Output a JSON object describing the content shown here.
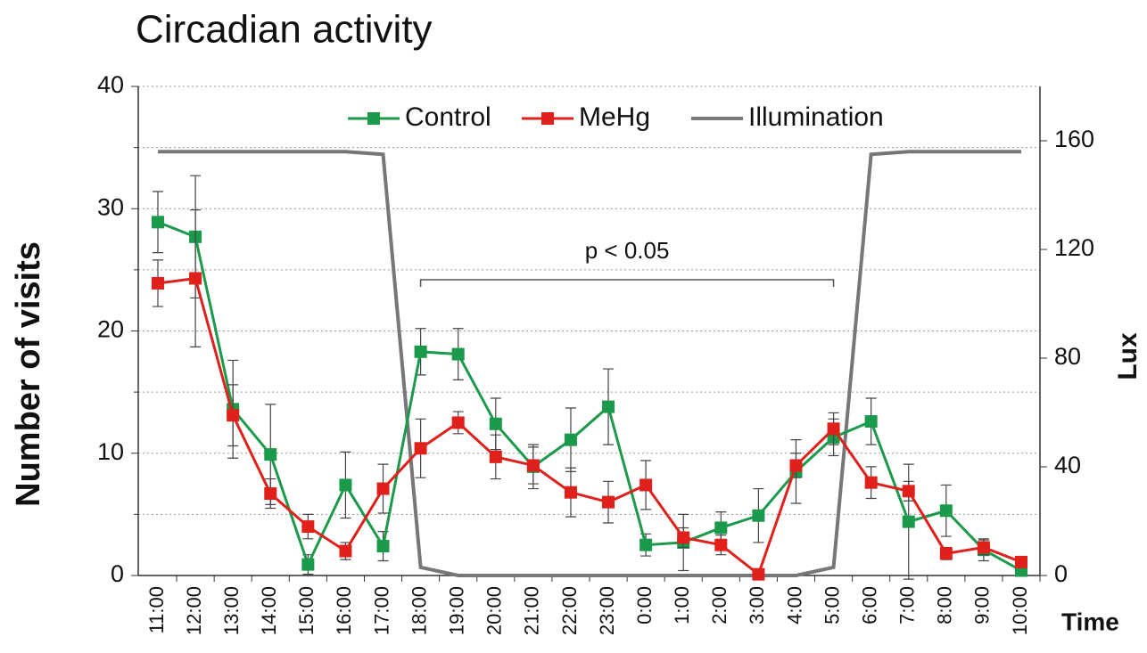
{
  "chart_data": {
    "type": "line",
    "title": "Circadian activity",
    "x_label": "Time",
    "y_label": "Number of visits",
    "y2_label": "Lux",
    "annotation": "p < 0.05",
    "annotation_span": [
      "18:00",
      "5:00"
    ],
    "categories": [
      "11:00",
      "12:00",
      "13:00",
      "14:00",
      "15:00",
      "16:00",
      "17:00",
      "18:00",
      "19:00",
      "20:00",
      "21:00",
      "22:00",
      "23:00",
      "0:00",
      "1:00",
      "2:00",
      "3:00",
      "4:00",
      "5:00",
      "6:00",
      "7:00",
      "8:00",
      "9:00",
      "10:00"
    ],
    "series": [
      {
        "name": "Control",
        "color": "#1a9a4a",
        "marker": "square",
        "values": [
          28.9,
          27.7,
          13.6,
          9.9,
          0.9,
          7.4,
          2.4,
          18.3,
          18.1,
          12.4,
          8.9,
          11.1,
          13.8,
          2.5,
          2.7,
          3.9,
          4.9,
          8.5,
          11.3,
          12.6,
          4.4,
          5.3,
          2.1,
          0.4
        ],
        "errors": [
          2.5,
          5,
          4,
          4.1,
          0.8,
          2.7,
          1.2,
          1.9,
          2.1,
          2.1,
          1.8,
          2.6,
          3.1,
          0.9,
          2.3,
          1.3,
          2.2,
          2.6,
          1.5,
          1.9,
          4.7,
          2.1,
          0.9,
          0.4
        ]
      },
      {
        "name": "MeHg",
        "color": "#e0201b",
        "marker": "square",
        "values": [
          23.9,
          24.3,
          13.1,
          6.7,
          4.0,
          2.0,
          7.1,
          10.4,
          12.5,
          9.7,
          9.0,
          6.8,
          6.0,
          7.4,
          3.1,
          2.5,
          0.1,
          9.0,
          12.0,
          7.6,
          6.9,
          1.8,
          2.3,
          1.1
        ],
        "errors": [
          1.9,
          5.6,
          2.5,
          1.2,
          1.0,
          0.7,
          2.0,
          2.4,
          0.9,
          1.8,
          1.5,
          2.0,
          1.7,
          2.0,
          0.8,
          0.8,
          0.1,
          1.0,
          1.3,
          1.3,
          0.8,
          0.5,
          0.6,
          0.3
        ]
      },
      {
        "name": "Illumination",
        "color": "#777777",
        "axis": "y2",
        "values": [
          156,
          156,
          156,
          156,
          156,
          156,
          155,
          3,
          0,
          0,
          0,
          0,
          0,
          0,
          0,
          0,
          0,
          0,
          3,
          155,
          156,
          156,
          156,
          156
        ]
      }
    ],
    "ylim": [
      0,
      40
    ],
    "yticks": [
      0,
      10,
      20,
      30,
      40
    ],
    "minor_yticks": [
      5,
      15,
      25,
      35
    ],
    "y2lim": [
      0,
      180
    ],
    "y2ticks": [
      0,
      40,
      80,
      120,
      160
    ],
    "grid": true,
    "legend": "top"
  }
}
